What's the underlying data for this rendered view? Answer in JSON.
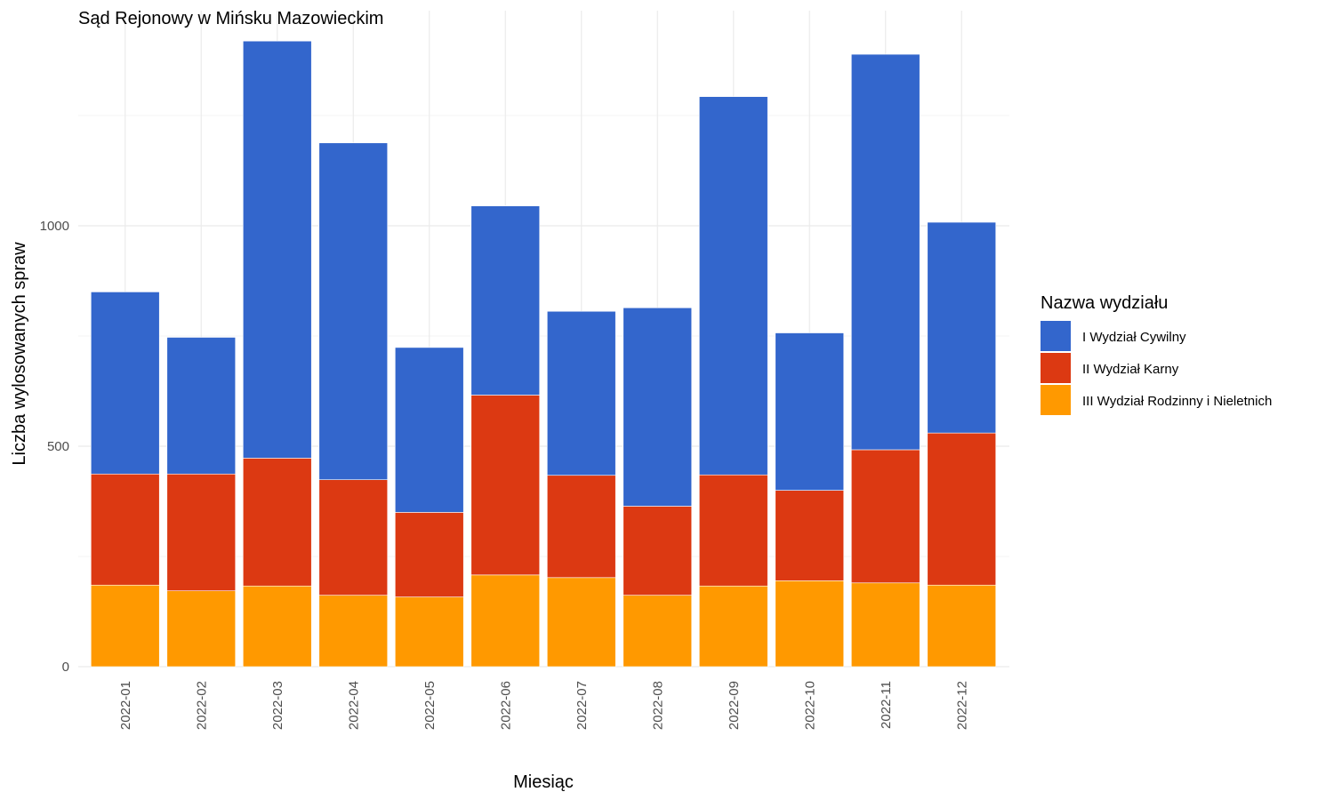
{
  "chart_data": {
    "type": "bar",
    "stacked": true,
    "title": "Sąd Rejonowy w Mińsku Mazowieckim",
    "xlabel": "Miesiąc",
    "ylabel": "Liczba wylosowanych spraw",
    "ylim": [
      0,
      1450
    ],
    "yticks": [
      0,
      500,
      1000
    ],
    "grid": true,
    "legend": {
      "title": "Nazwa wydziału",
      "position": "right"
    },
    "categories": [
      "2022-01",
      "2022-02",
      "2022-03",
      "2022-04",
      "2022-05",
      "2022-06",
      "2022-07",
      "2022-08",
      "2022-09",
      "2022-10",
      "2022-11",
      "2022-12"
    ],
    "series": [
      {
        "name": "III Wydział Rodzinny i Nieletnich",
        "color": "#FF9900",
        "values": [
          185,
          172,
          183,
          162,
          158,
          208,
          202,
          162,
          183,
          195,
          190,
          185
        ]
      },
      {
        "name": "II Wydział Karny",
        "color": "#DC3912",
        "values": [
          252,
          265,
          290,
          262,
          192,
          408,
          232,
          202,
          252,
          205,
          302,
          345
        ]
      },
      {
        "name": "I Wydział Cywilny",
        "color": "#3366CC",
        "values": [
          413,
          310,
          946,
          764,
          374,
          429,
          372,
          450,
          858,
          357,
          897,
          478
        ]
      }
    ]
  }
}
